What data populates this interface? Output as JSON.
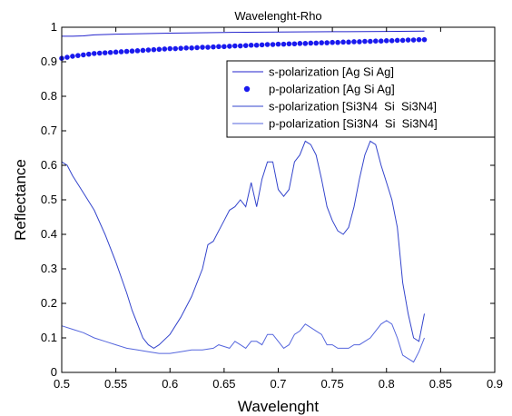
{
  "chart_data": {
    "type": "line",
    "title": "Wavelenght-Rho",
    "xlabel": "Wavelenght",
    "ylabel": "Reflectance",
    "xlim": [
      0.5,
      0.9
    ],
    "ylim": [
      0,
      1
    ],
    "xticks": [
      0.5,
      0.55,
      0.6,
      0.65,
      0.7,
      0.75,
      0.8,
      0.85,
      0.9
    ],
    "yticks": [
      0,
      0.1,
      0.2,
      0.3,
      0.4,
      0.5,
      0.6,
      0.7,
      0.8,
      0.9,
      1
    ],
    "xtick_labels": [
      "0.5",
      "0.55",
      "0.6",
      "0.65",
      "0.7",
      "0.75",
      "0.8",
      "0.85",
      "0.9"
    ],
    "ytick_labels": [
      "0",
      "0.1",
      "0.2",
      "0.3",
      "0.4",
      "0.5",
      "0.6",
      "0.7",
      "0.8",
      "0.9",
      "1"
    ],
    "grid": false,
    "legend_position": "top-right",
    "series": [
      {
        "name": "s-polarization [Ag Si Ag]",
        "style": "line",
        "color": "#2222cc",
        "x": [
          0.5,
          0.51,
          0.52,
          0.53,
          0.55,
          0.6,
          0.65,
          0.7,
          0.75,
          0.8,
          0.835
        ],
        "y": [
          0.974,
          0.974,
          0.975,
          0.978,
          0.98,
          0.983,
          0.985,
          0.986,
          0.987,
          0.988,
          0.989
        ]
      },
      {
        "name": "p-polarization [Ag Si Ag]",
        "style": "dots",
        "color": "#1a1aee",
        "x": [
          0.5,
          0.505,
          0.51,
          0.515,
          0.52,
          0.525,
          0.53,
          0.535,
          0.54,
          0.545,
          0.55,
          0.555,
          0.56,
          0.565,
          0.57,
          0.575,
          0.58,
          0.585,
          0.59,
          0.595,
          0.6,
          0.605,
          0.61,
          0.615,
          0.62,
          0.625,
          0.63,
          0.635,
          0.64,
          0.645,
          0.65,
          0.655,
          0.66,
          0.665,
          0.67,
          0.675,
          0.68,
          0.685,
          0.69,
          0.695,
          0.7,
          0.705,
          0.71,
          0.715,
          0.72,
          0.725,
          0.73,
          0.735,
          0.74,
          0.745,
          0.75,
          0.755,
          0.76,
          0.765,
          0.77,
          0.775,
          0.78,
          0.785,
          0.79,
          0.795,
          0.8,
          0.805,
          0.81,
          0.815,
          0.82,
          0.825,
          0.83,
          0.835
        ],
        "y": [
          0.91,
          0.913,
          0.916,
          0.918,
          0.92,
          0.922,
          0.924,
          0.925,
          0.926,
          0.927,
          0.928,
          0.929,
          0.93,
          0.931,
          0.932,
          0.933,
          0.934,
          0.935,
          0.936,
          0.937,
          0.938,
          0.938,
          0.939,
          0.94,
          0.94,
          0.941,
          0.942,
          0.942,
          0.943,
          0.944,
          0.944,
          0.945,
          0.946,
          0.946,
          0.947,
          0.948,
          0.948,
          0.949,
          0.95,
          0.95,
          0.951,
          0.951,
          0.952,
          0.952,
          0.953,
          0.953,
          0.954,
          0.954,
          0.955,
          0.955,
          0.956,
          0.956,
          0.957,
          0.957,
          0.958,
          0.958,
          0.959,
          0.959,
          0.96,
          0.96,
          0.961,
          0.961,
          0.962,
          0.962,
          0.963,
          0.963,
          0.964,
          0.964
        ]
      },
      {
        "name": "s-polarization [Si3N4  Si  Si3N4]",
        "style": "line",
        "color": "#3344cc",
        "x": [
          0.5,
          0.505,
          0.51,
          0.52,
          0.53,
          0.54,
          0.55,
          0.56,
          0.565,
          0.57,
          0.575,
          0.58,
          0.585,
          0.59,
          0.6,
          0.61,
          0.62,
          0.63,
          0.635,
          0.64,
          0.645,
          0.65,
          0.655,
          0.66,
          0.665,
          0.67,
          0.675,
          0.68,
          0.685,
          0.69,
          0.695,
          0.7,
          0.705,
          0.71,
          0.715,
          0.72,
          0.725,
          0.73,
          0.735,
          0.74,
          0.745,
          0.75,
          0.755,
          0.76,
          0.765,
          0.77,
          0.775,
          0.78,
          0.785,
          0.79,
          0.795,
          0.8,
          0.805,
          0.81,
          0.815,
          0.82,
          0.825,
          0.83,
          0.835
        ],
        "y": [
          0.61,
          0.6,
          0.57,
          0.52,
          0.47,
          0.4,
          0.32,
          0.23,
          0.18,
          0.14,
          0.1,
          0.08,
          0.07,
          0.08,
          0.11,
          0.16,
          0.22,
          0.3,
          0.37,
          0.38,
          0.41,
          0.44,
          0.47,
          0.48,
          0.5,
          0.48,
          0.55,
          0.48,
          0.56,
          0.61,
          0.61,
          0.53,
          0.51,
          0.53,
          0.61,
          0.63,
          0.67,
          0.66,
          0.63,
          0.56,
          0.48,
          0.44,
          0.41,
          0.4,
          0.42,
          0.48,
          0.56,
          0.63,
          0.67,
          0.66,
          0.6,
          0.55,
          0.5,
          0.42,
          0.26,
          0.17,
          0.1,
          0.09,
          0.17
        ]
      },
      {
        "name": "p-polarization [Si3N4  Si  Si3N4]",
        "style": "line",
        "color": "#5566dd",
        "x": [
          0.5,
          0.51,
          0.52,
          0.53,
          0.54,
          0.55,
          0.56,
          0.57,
          0.58,
          0.59,
          0.6,
          0.61,
          0.62,
          0.63,
          0.64,
          0.645,
          0.65,
          0.655,
          0.66,
          0.665,
          0.67,
          0.675,
          0.68,
          0.685,
          0.69,
          0.695,
          0.7,
          0.705,
          0.71,
          0.715,
          0.72,
          0.725,
          0.73,
          0.735,
          0.74,
          0.745,
          0.75,
          0.755,
          0.76,
          0.765,
          0.77,
          0.775,
          0.78,
          0.785,
          0.79,
          0.795,
          0.8,
          0.805,
          0.81,
          0.815,
          0.82,
          0.825,
          0.83,
          0.835
        ],
        "y": [
          0.135,
          0.125,
          0.115,
          0.1,
          0.09,
          0.08,
          0.07,
          0.065,
          0.06,
          0.055,
          0.055,
          0.06,
          0.065,
          0.065,
          0.07,
          0.08,
          0.075,
          0.07,
          0.09,
          0.08,
          0.07,
          0.09,
          0.09,
          0.08,
          0.11,
          0.11,
          0.09,
          0.07,
          0.08,
          0.11,
          0.12,
          0.14,
          0.13,
          0.12,
          0.11,
          0.08,
          0.08,
          0.07,
          0.07,
          0.07,
          0.08,
          0.08,
          0.09,
          0.1,
          0.12,
          0.14,
          0.15,
          0.14,
          0.1,
          0.05,
          0.04,
          0.03,
          0.06,
          0.1
        ]
      }
    ]
  }
}
